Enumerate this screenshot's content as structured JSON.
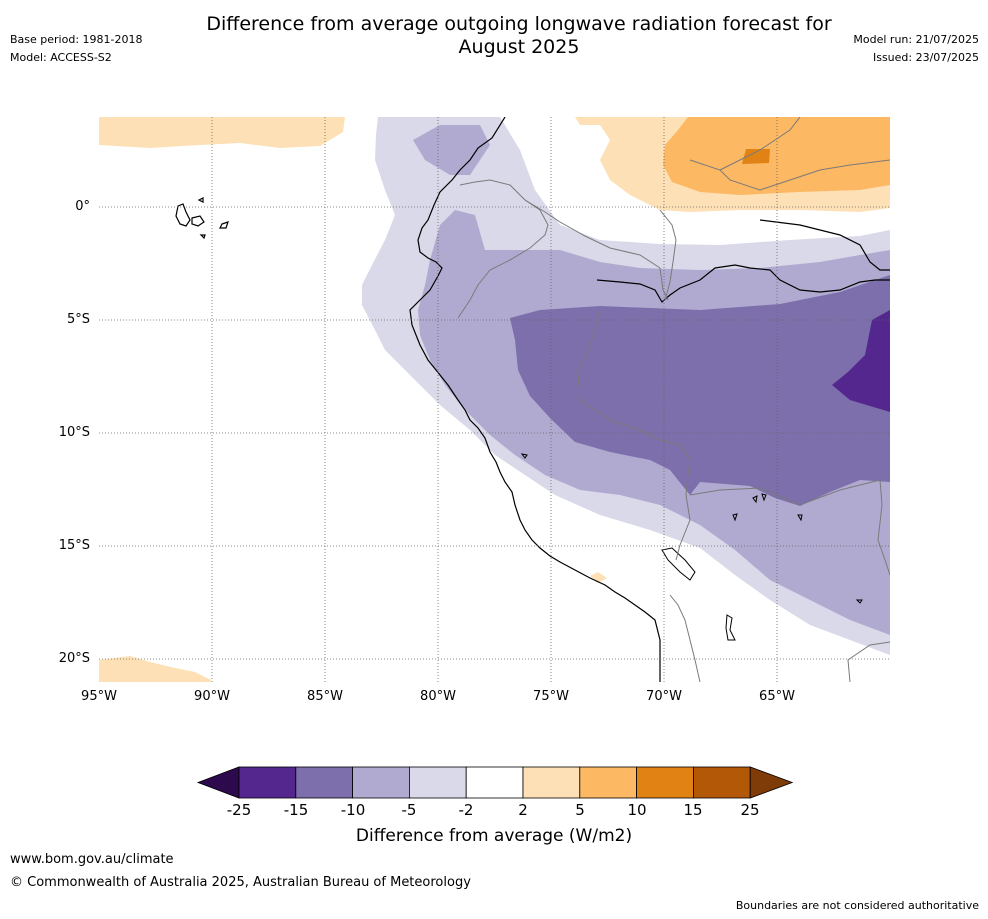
{
  "title_line1": "Difference from average outgoing longwave radiation forecast for",
  "title_line2": "August 2025",
  "meta_left": {
    "base_period": "Base period: 1981-2018",
    "model": "Model: ACCESS-S2"
  },
  "meta_right": {
    "model_run": "Model run: 21/07/2025",
    "issued": "Issued: 23/07/2025"
  },
  "map": {
    "lat_labels": [
      "0°",
      "5°S",
      "10°S",
      "15°S",
      "20°S"
    ],
    "lon_labels": [
      "95°W",
      "90°W",
      "85°W",
      "80°W",
      "75°W",
      "70°W",
      "65°W"
    ]
  },
  "colorbar": {
    "ticks": [
      "-25",
      "-15",
      "-10",
      "-5",
      "-2",
      "2",
      "5",
      "10",
      "15",
      "25"
    ],
    "colors": [
      "#2d0a4e",
      "#54278f",
      "#7d6fab",
      "#b0aad0",
      "#d9d9e9",
      "#ffffff",
      "#fee0b6",
      "#fdb863",
      "#e08214",
      "#b35806",
      "#7f3b08"
    ],
    "title": "Difference from average (W/m2)"
  },
  "footer": {
    "url": "www.bom.gov.au/climate",
    "copyright": "© Commonwealth of Australia 2025, Australian Bureau of Meteorology",
    "disclaimer": "Boundaries are not considered authoritative"
  }
}
